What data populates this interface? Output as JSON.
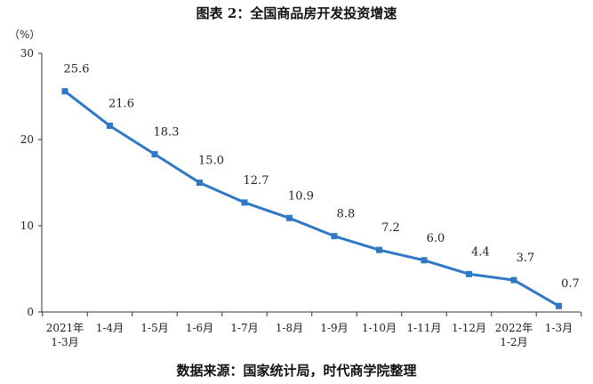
{
  "title": "图表 2：全国商品房开发投资增速",
  "source": "数据来源：国家统计局，时代商学院整理",
  "chart_data": {
    "type": "line",
    "title": "图表 2：全国商品房开发投资增速",
    "unit": "（%）",
    "categories": [
      [
        "2021年",
        "1-3月"
      ],
      [
        "1-4月"
      ],
      [
        "1-5月"
      ],
      [
        "1-6月"
      ],
      [
        "1-7月"
      ],
      [
        "1-8月"
      ],
      [
        "1-9月"
      ],
      [
        "1-10月"
      ],
      [
        "1-11月"
      ],
      [
        "1-12月"
      ],
      [
        "2022年",
        "1-2月"
      ],
      [
        "1-3月"
      ]
    ],
    "values": [
      25.6,
      21.6,
      18.3,
      15.0,
      12.7,
      10.9,
      8.8,
      7.2,
      6.0,
      4.4,
      3.7,
      0.7
    ],
    "value_labels": [
      "25.6",
      "21.6",
      "18.3",
      "15.0",
      "12.7",
      "10.9",
      "8.8",
      "7.2",
      "6.0",
      "4.4",
      "3.7",
      "0.7"
    ],
    "ylim": [
      0,
      30
    ],
    "yticks": [
      0,
      10,
      20,
      30
    ],
    "grid": false,
    "line_color": "#2f78c6",
    "marker": "square"
  }
}
